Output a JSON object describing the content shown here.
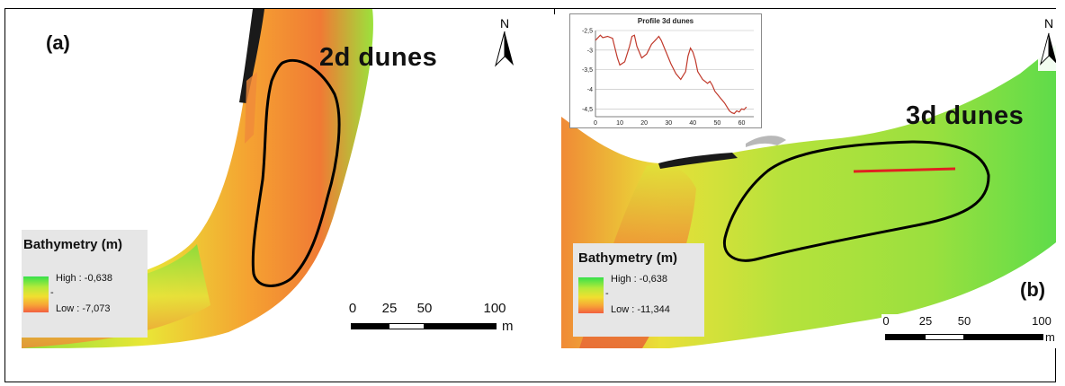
{
  "panel_a": {
    "tag": "(a)",
    "title": "2d dunes",
    "north_label": "N",
    "legend": {
      "title": "Bathymetry (m)",
      "high_label": "High : -0,638",
      "low_label": "Low : -7,073",
      "tick": "-"
    },
    "scale": {
      "labels": [
        "0",
        "25",
        "50",
        "100"
      ],
      "unit": "m"
    }
  },
  "panel_b": {
    "tag": "(b)",
    "title": "3d dunes",
    "north_label": "N",
    "legend": {
      "title": "Bathymetry (m)",
      "high_label": "High : -0,638",
      "low_label": "Low : -11,344",
      "tick": "-"
    },
    "scale": {
      "labels": [
        "0",
        "25",
        "50",
        "100"
      ],
      "unit": "m"
    },
    "profile_line_color": "#e02020"
  },
  "chart_data": {
    "type": "line",
    "title": "Profile 3d dunes",
    "xlabel": "",
    "ylabel": "",
    "xlim": [
      0,
      65
    ],
    "ylim": [
      -4.7,
      -2.5
    ],
    "x_ticks": [
      "0",
      "10",
      "20",
      "30",
      "40",
      "50",
      "60"
    ],
    "y_ticks": [
      "-2,5",
      "-3",
      "-3,5",
      "-4",
      "-4,5"
    ],
    "grid": true,
    "series": [
      {
        "color": "#c0392b",
        "x": [
          0,
          2,
          3,
          5,
          7,
          9,
          10,
          12,
          14,
          15,
          16,
          17,
          19,
          21,
          23,
          25,
          26,
          27,
          29,
          31,
          33,
          35,
          37,
          38,
          39,
          40,
          41,
          42,
          44,
          46,
          47,
          48,
          49,
          51,
          53,
          54,
          55,
          56,
          57,
          58,
          59,
          60,
          61,
          62
        ],
        "y": [
          -2.75,
          -2.62,
          -2.68,
          -2.65,
          -2.7,
          -3.2,
          -3.38,
          -3.3,
          -2.9,
          -2.65,
          -2.62,
          -2.9,
          -3.2,
          -3.1,
          -2.85,
          -2.72,
          -2.65,
          -2.75,
          -3.05,
          -3.35,
          -3.6,
          -3.75,
          -3.55,
          -3.15,
          -2.95,
          -3.05,
          -3.25,
          -3.55,
          -3.75,
          -3.85,
          -3.8,
          -3.9,
          -4.05,
          -4.2,
          -4.35,
          -4.45,
          -4.55,
          -4.6,
          -4.62,
          -4.55,
          -4.58,
          -4.5,
          -4.52,
          -4.45
        ]
      }
    ]
  }
}
